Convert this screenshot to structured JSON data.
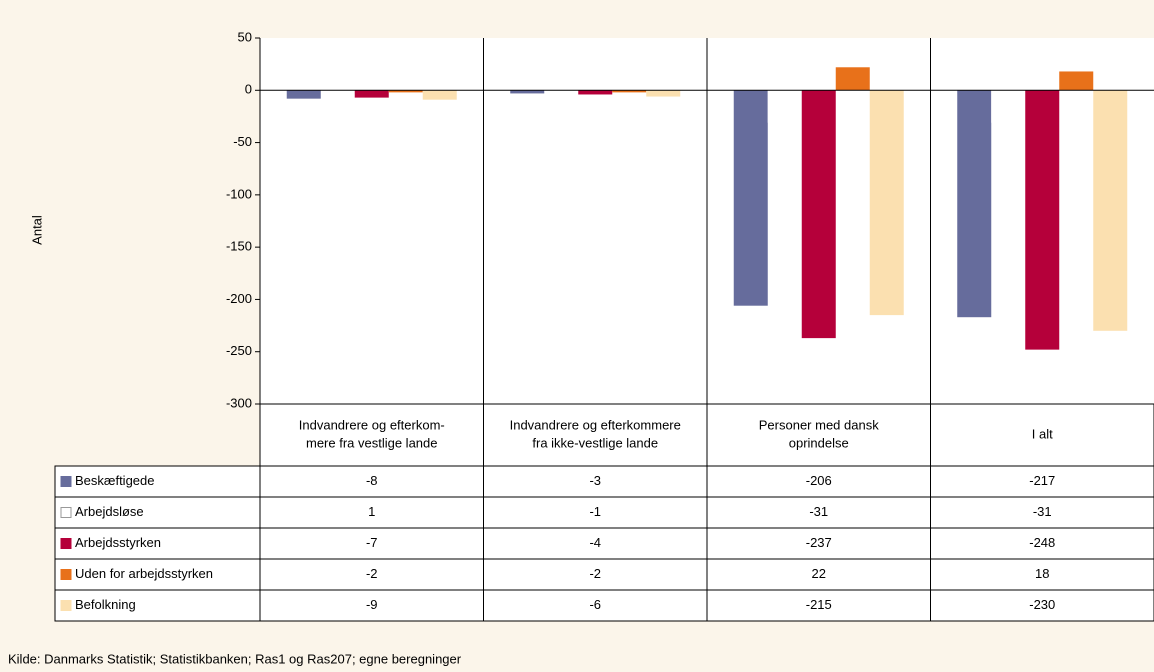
{
  "chart_data": {
    "type": "bar",
    "y_label": "Antal",
    "categories": [
      [
        "Indvandrere og efterkom-",
        "mere fra vestlige lande"
      ],
      [
        "Indvandrere og efterkommere",
        "fra ikke-vestlige lande"
      ],
      [
        "Personer med dansk",
        "oprindelse"
      ],
      [
        "I alt"
      ]
    ],
    "series": [
      {
        "name": "Beskæftigede",
        "color": "#666c9c",
        "values": [
          -8,
          -3,
          -206,
          -217
        ]
      },
      {
        "name": "Arbejdsløse",
        "color": "#ffffff",
        "values": [
          1,
          -1,
          -31,
          -31
        ]
      },
      {
        "name": "Arbejdsstyrken",
        "color": "#b5003a",
        "values": [
          -7,
          -4,
          -237,
          -248
        ]
      },
      {
        "name": "Uden for arbejdsstyrken",
        "color": "#e8711a",
        "values": [
          -2,
          -2,
          22,
          18
        ]
      },
      {
        "name": "Befolkning",
        "color": "#fbe0b0",
        "values": [
          -9,
          -6,
          -215,
          -230
        ]
      }
    ],
    "ylim": [
      -300,
      50
    ],
    "yticks": [
      50,
      0,
      -50,
      -100,
      -150,
      -200,
      -250,
      -300
    ],
    "source": "Kilde: Danmarks Statistik; Statistikbanken; Ras1 og Ras207; egne beregninger"
  }
}
